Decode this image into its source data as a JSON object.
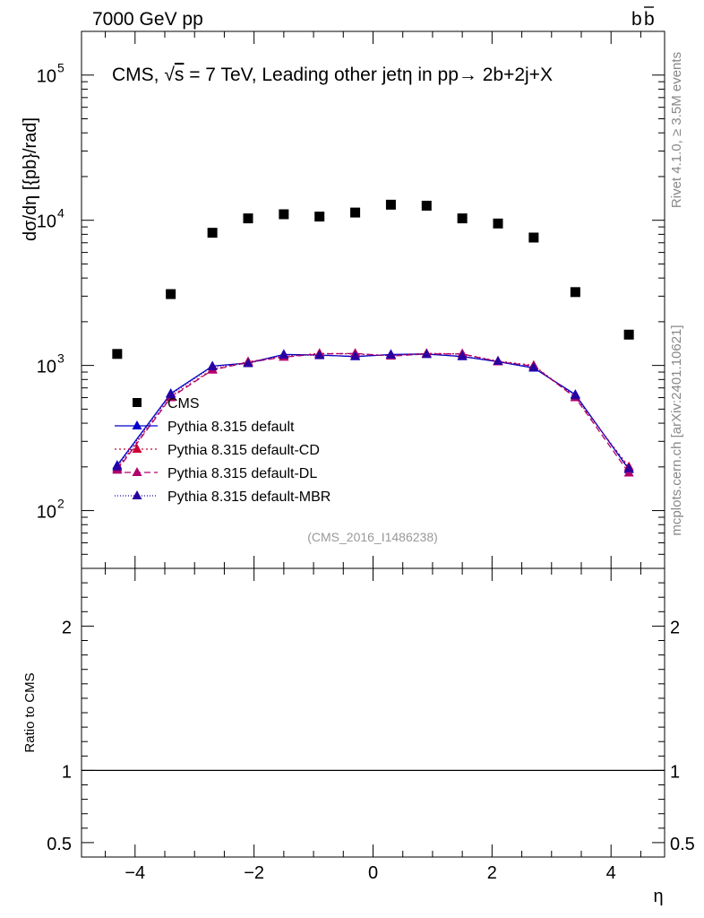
{
  "header": {
    "left": "7000 GeV pp",
    "right": "b",
    "right_bar": "b"
  },
  "side_labels": {
    "rivet": "Rivet 4.1.0, ≥ 3.5M events",
    "mcplots": "mcplots.cern.ch [arXiv:2401.10621]"
  },
  "chart_data": {
    "type": "scatter",
    "title": "CMS, √s = 7 TeV, Leading other jetη in pp→  2b+2j+X",
    "title_parts": {
      "a": "CMS, ",
      "sqrt": "√",
      "s": "s",
      "b": " = 7 TeV, Leading other jetη in pp→  2b+2j+X"
    },
    "watermark": "(CMS_2016_I1486238)",
    "xlabel": "η",
    "ylabel": "dσ/dη [{pb}/rad]",
    "ratio_ylabel": "Ratio to CMS",
    "xlim": [
      -4.9,
      4.9
    ],
    "ylim": [
      40,
      200000
    ],
    "yscale": "log",
    "ratio_ylim": [
      0.4,
      2.4
    ],
    "x_ticks": [
      -4,
      -2,
      0,
      2,
      4
    ],
    "x_tick_labels": [
      "−4",
      "−2",
      "0",
      "2",
      "4"
    ],
    "y_ticks": [
      100,
      1000,
      10000,
      100000
    ],
    "y_tick_labels": [
      {
        "base": "10",
        "exp": "2"
      },
      {
        "base": "10",
        "exp": "3"
      },
      {
        "base": "10",
        "exp": "4"
      },
      {
        "base": "10",
        "exp": "5"
      }
    ],
    "ratio_ticks": [
      0.5,
      1,
      2
    ],
    "ratio_tick_labels": [
      "0.5",
      "1",
      "2"
    ],
    "x": [
      -4.3,
      -3.4,
      -2.7,
      -2.1,
      -1.5,
      -0.9,
      -0.3,
      0.3,
      0.9,
      1.5,
      2.1,
      2.7,
      3.4,
      4.3
    ],
    "series": [
      {
        "name": "CMS",
        "kind": "data",
        "color": "#000000",
        "values": [
          1200,
          3100,
          8200,
          10300,
          11000,
          10600,
          11300,
          12800,
          12600,
          10300,
          9500,
          7600,
          3200,
          1630
        ]
      },
      {
        "name": "Pythia 8.315 default",
        "kind": "mc",
        "color": "#0000cc",
        "dash": "",
        "values": [
          205,
          640,
          990,
          1040,
          1190,
          1180,
          1150,
          1190,
          1200,
          1150,
          1060,
          960,
          630,
          192
        ]
      },
      {
        "name": "Pythia 8.315 default-CD",
        "kind": "mc",
        "color": "#cc0033",
        "dash": "2,3",
        "values": [
          195,
          610,
          940,
          1060,
          1150,
          1210,
          1200,
          1170,
          1210,
          1200,
          1070,
          1000,
          605,
          200
        ]
      },
      {
        "name": "Pythia 8.315 default-DL",
        "kind": "mc",
        "color": "#b0006e",
        "dash": "7,4",
        "values": [
          190,
          600,
          930,
          1050,
          1140,
          1200,
          1210,
          1160,
          1200,
          1200,
          1060,
          990,
          600,
          182
        ]
      },
      {
        "name": "Pythia 8.315 default-MBR",
        "kind": "mc",
        "color": "#2a00a0",
        "dash": "1,2",
        "values": [
          200,
          630,
          980,
          1030,
          1180,
          1170,
          1160,
          1180,
          1190,
          1160,
          1070,
          970,
          620,
          195
        ]
      }
    ]
  }
}
